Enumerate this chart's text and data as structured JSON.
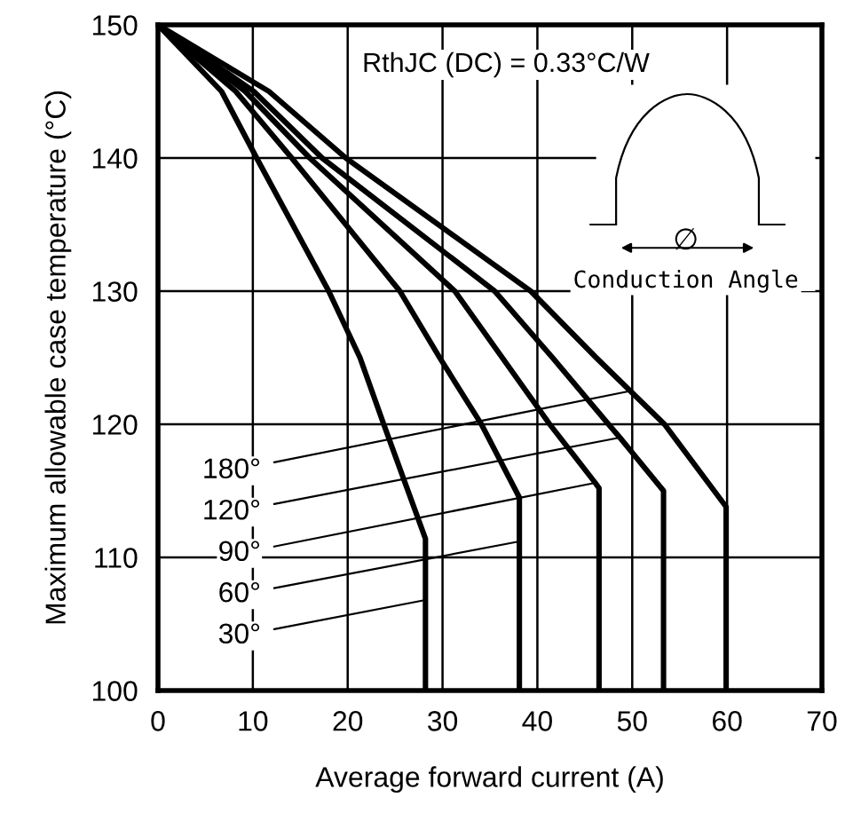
{
  "chart_data": {
    "type": "line",
    "xlabel": "Average forward current (A)",
    "ylabel": "Maximum allowable case temperature (°C)",
    "xlim": [
      0,
      70
    ],
    "ylim": [
      100,
      150
    ],
    "xticks": [
      0,
      10,
      20,
      30,
      40,
      50,
      60,
      70
    ],
    "yticks": [
      100,
      110,
      120,
      130,
      140,
      150
    ],
    "grid": true,
    "legend": false,
    "marker": "none",
    "line_style": "solid",
    "series": [
      {
        "color": "#000000",
        "x": [
          0,
          6.7,
          10.4,
          18,
          21.3,
          23.8,
          28.2,
          28.2
        ],
        "values": [
          150,
          145,
          140,
          130,
          125,
          120,
          111.4,
          100
        ]
      },
      {
        "color": "#000000",
        "x": [
          0,
          8.2,
          14.1,
          25.5,
          29.7,
          34.1,
          38.1,
          38.1
        ],
        "values": [
          150,
          145,
          140,
          130,
          125,
          120,
          114.5,
          100
        ]
      },
      {
        "color": "#000000",
        "x": [
          0,
          9.2,
          16,
          31.3,
          36.3,
          41.3,
          46.1,
          46.5,
          46.5
        ],
        "values": [
          150,
          145,
          140,
          130,
          125,
          120,
          115.6,
          115.2,
          100
        ]
      },
      {
        "color": "#000000",
        "x": [
          0,
          10.1,
          17.3,
          35.5,
          41.6,
          47.5,
          48.7,
          53.3,
          53.3
        ],
        "values": [
          150,
          145,
          140,
          130,
          125,
          120,
          119,
          115,
          100
        ]
      },
      {
        "color": "#000000",
        "x": [
          0,
          11.7,
          19.8,
          39.3,
          46.2,
          49.8,
          53.4,
          59.9,
          59.9
        ],
        "values": [
          150,
          145,
          140,
          130,
          125,
          122.5,
          120,
          113.8,
          100
        ]
      }
    ],
    "annotations": [
      "RthJC (DC) = 0.33°C/W",
      "∅",
      "Conduction Angle",
      {
        "text": "180°",
        "x": 49.8,
        "y": 122.5
      },
      {
        "text": "120°",
        "x": 48.7,
        "y": 119
      },
      {
        "text": "90°",
        "x": 46.1,
        "y": 115.6
      },
      {
        "text": "60°",
        "x": 38.1,
        "y": 111.2
      },
      {
        "text": "30°",
        "x": 28.2,
        "y": 106.8
      }
    ]
  }
}
